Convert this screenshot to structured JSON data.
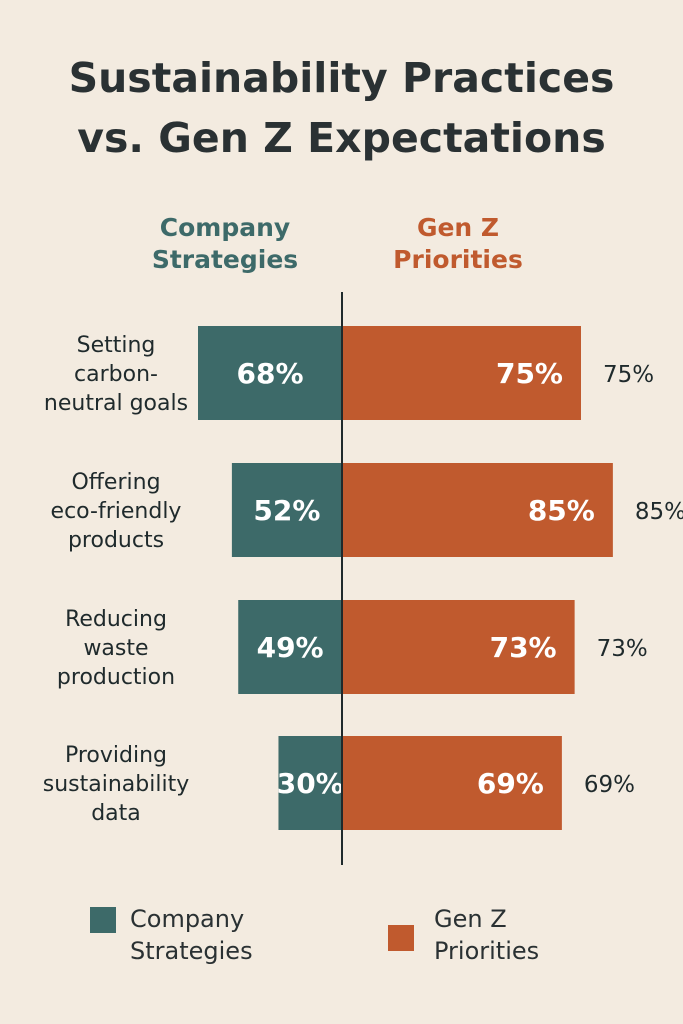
{
  "title": {
    "line1": "Sustainability Practices",
    "line2": "vs. Gen Z Expectations"
  },
  "headers": {
    "company": [
      "Company",
      "Strategies"
    ],
    "genz": [
      "Gen Z",
      "Priorities"
    ]
  },
  "legend": {
    "company": [
      "Company",
      "Strategies"
    ],
    "genz": [
      "Gen Z",
      "Priorities"
    ]
  },
  "colors": {
    "company": "#3d6a69",
    "genz": "#c05a2e",
    "axis": "#1f2a2c",
    "background": "#f3ebe0"
  },
  "chart_data": {
    "type": "bar",
    "orientation": "diverging-horizontal",
    "categories": [
      [
        "Setting",
        "carbon-",
        "neutral goals"
      ],
      [
        "Offering",
        "eco-friendly",
        "products"
      ],
      [
        "Reducing",
        "waste",
        "production"
      ],
      [
        "Providing",
        "sustainability",
        "data"
      ]
    ],
    "series": [
      {
        "name": "Company Strategies",
        "values": [
          68,
          52,
          49,
          30
        ],
        "labels": [
          "68%",
          "52%",
          "49%",
          "30%"
        ]
      },
      {
        "name": "Gen Z Priorities",
        "values": [
          75,
          85,
          73,
          69
        ],
        "labels": [
          "75%",
          "85%",
          "73%",
          "69%"
        ],
        "outside_labels": [
          "75%",
          "85%",
          "73%",
          "69%"
        ]
      }
    ],
    "unit": "%",
    "grid": false
  }
}
